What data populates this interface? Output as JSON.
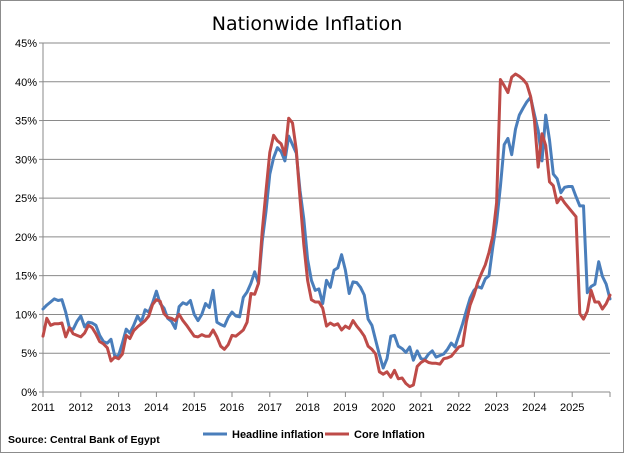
{
  "chart_data": {
    "type": "line",
    "title": "Nationwide Inflation",
    "source": "Source:  Central Bank of Egypt",
    "xlabel": "",
    "ylabel": "",
    "x_ticks": [
      "2011",
      "2012",
      "2013",
      "2014",
      "2015",
      "2016",
      "2017",
      "2018",
      "2019",
      "2020",
      "2021",
      "2022",
      "2023",
      "2024",
      "2025"
    ],
    "xlim": [
      2011.0,
      2026.0
    ],
    "y_ticks": [
      "0%",
      "5%",
      "10%",
      "15%",
      "20%",
      "25%",
      "30%",
      "35%",
      "40%",
      "45%"
    ],
    "ylim": [
      0,
      45
    ],
    "grid": "horizontal",
    "legend_position": "bottom-right",
    "series": [
      {
        "name": "Headline inflation",
        "color": "#4a7ebb",
        "points": [
          [
            2011.0,
            10.7
          ],
          [
            2011.1,
            11.2
          ],
          [
            2011.2,
            11.6
          ],
          [
            2011.3,
            12.0
          ],
          [
            2011.4,
            11.8
          ],
          [
            2011.5,
            11.9
          ],
          [
            2011.6,
            10.3
          ],
          [
            2011.7,
            8.2
          ],
          [
            2011.8,
            8.1
          ],
          [
            2011.9,
            9.1
          ],
          [
            2012.0,
            9.8
          ],
          [
            2012.1,
            8.4
          ],
          [
            2012.2,
            9.0
          ],
          [
            2012.3,
            8.9
          ],
          [
            2012.4,
            8.6
          ],
          [
            2012.5,
            7.3
          ],
          [
            2012.6,
            6.5
          ],
          [
            2012.7,
            6.3
          ],
          [
            2012.8,
            6.8
          ],
          [
            2012.9,
            4.6
          ],
          [
            2013.0,
            4.7
          ],
          [
            2013.1,
            6.3
          ],
          [
            2013.2,
            8.1
          ],
          [
            2013.3,
            7.6
          ],
          [
            2013.4,
            8.6
          ],
          [
            2013.5,
            9.8
          ],
          [
            2013.6,
            9.0
          ],
          [
            2013.7,
            10.6
          ],
          [
            2013.8,
            10.3
          ],
          [
            2013.9,
            11.5
          ],
          [
            2014.0,
            13.0
          ],
          [
            2014.1,
            11.4
          ],
          [
            2014.2,
            10.8
          ],
          [
            2014.3,
            9.5
          ],
          [
            2014.4,
            9.1
          ],
          [
            2014.5,
            8.2
          ],
          [
            2014.6,
            11.0
          ],
          [
            2014.7,
            11.5
          ],
          [
            2014.8,
            11.3
          ],
          [
            2014.9,
            11.8
          ],
          [
            2015.0,
            10.0
          ],
          [
            2015.1,
            9.2
          ],
          [
            2015.2,
            10.0
          ],
          [
            2015.3,
            11.4
          ],
          [
            2015.4,
            10.9
          ],
          [
            2015.5,
            13.1
          ],
          [
            2015.6,
            9.0
          ],
          [
            2015.7,
            8.7
          ],
          [
            2015.8,
            8.5
          ],
          [
            2015.9,
            9.6
          ],
          [
            2016.0,
            10.3
          ],
          [
            2016.1,
            9.8
          ],
          [
            2016.2,
            9.7
          ],
          [
            2016.3,
            12.2
          ],
          [
            2016.4,
            12.9
          ],
          [
            2016.5,
            14.0
          ],
          [
            2016.6,
            15.5
          ],
          [
            2016.7,
            14.0
          ],
          [
            2016.8,
            19.4
          ],
          [
            2016.9,
            23.3
          ],
          [
            2017.0,
            28.1
          ],
          [
            2017.1,
            30.2
          ],
          [
            2017.2,
            31.5
          ],
          [
            2017.3,
            31.0
          ],
          [
            2017.4,
            29.8
          ],
          [
            2017.5,
            33.0
          ],
          [
            2017.6,
            31.9
          ],
          [
            2017.7,
            30.8
          ],
          [
            2017.8,
            26.0
          ],
          [
            2017.9,
            22.3
          ],
          [
            2018.0,
            17.1
          ],
          [
            2018.1,
            14.4
          ],
          [
            2018.2,
            13.1
          ],
          [
            2018.3,
            13.3
          ],
          [
            2018.4,
            11.4
          ],
          [
            2018.5,
            14.4
          ],
          [
            2018.6,
            13.5
          ],
          [
            2018.7,
            15.7
          ],
          [
            2018.8,
            16.0
          ],
          [
            2018.9,
            17.7
          ],
          [
            2019.0,
            15.7
          ],
          [
            2019.1,
            12.7
          ],
          [
            2019.2,
            14.2
          ],
          [
            2019.3,
            14.1
          ],
          [
            2019.4,
            13.5
          ],
          [
            2019.5,
            12.5
          ],
          [
            2019.6,
            9.4
          ],
          [
            2019.7,
            8.6
          ],
          [
            2019.8,
            6.7
          ],
          [
            2019.9,
            4.8
          ],
          [
            2020.0,
            3.1
          ],
          [
            2020.1,
            4.3
          ],
          [
            2020.2,
            7.2
          ],
          [
            2020.3,
            7.3
          ],
          [
            2020.4,
            5.9
          ],
          [
            2020.5,
            5.6
          ],
          [
            2020.6,
            5.1
          ],
          [
            2020.7,
            5.8
          ],
          [
            2020.8,
            4.1
          ],
          [
            2020.9,
            5.3
          ],
          [
            2021.0,
            4.3
          ],
          [
            2021.1,
            4.2
          ],
          [
            2021.2,
            4.9
          ],
          [
            2021.3,
            5.3
          ],
          [
            2021.4,
            4.5
          ],
          [
            2021.5,
            4.7
          ],
          [
            2021.6,
            4.9
          ],
          [
            2021.7,
            5.5
          ],
          [
            2021.8,
            6.3
          ],
          [
            2021.9,
            5.8
          ],
          [
            2022.0,
            7.3
          ],
          [
            2022.1,
            8.8
          ],
          [
            2022.2,
            10.5
          ],
          [
            2022.3,
            12.1
          ],
          [
            2022.4,
            13.1
          ],
          [
            2022.5,
            13.6
          ],
          [
            2022.6,
            13.4
          ],
          [
            2022.7,
            14.6
          ],
          [
            2022.8,
            15.0
          ],
          [
            2022.9,
            18.7
          ],
          [
            2023.0,
            21.9
          ],
          [
            2023.1,
            26.5
          ],
          [
            2023.2,
            31.9
          ],
          [
            2023.3,
            32.7
          ],
          [
            2023.4,
            30.6
          ],
          [
            2023.5,
            33.9
          ],
          [
            2023.6,
            35.7
          ],
          [
            2023.7,
            36.6
          ],
          [
            2023.8,
            37.4
          ],
          [
            2023.9,
            38.0
          ],
          [
            2024.0,
            35.8
          ],
          [
            2024.1,
            33.7
          ],
          [
            2024.2,
            29.8
          ],
          [
            2024.3,
            35.7
          ],
          [
            2024.4,
            32.5
          ],
          [
            2024.5,
            28.1
          ],
          [
            2024.6,
            27.5
          ],
          [
            2024.7,
            25.7
          ],
          [
            2024.8,
            26.4
          ],
          [
            2024.9,
            26.5
          ],
          [
            2025.0,
            26.5
          ],
          [
            2025.1,
            25.2
          ],
          [
            2025.2,
            24.0
          ],
          [
            2025.3,
            24.0
          ],
          [
            2025.4,
            12.8
          ],
          [
            2025.5,
            13.6
          ],
          [
            2025.6,
            13.9
          ],
          [
            2025.7,
            16.8
          ],
          [
            2025.8,
            14.9
          ],
          [
            2025.9,
            13.9
          ],
          [
            2026.0,
            12.0
          ]
        ]
      },
      {
        "name": "Core Inflation",
        "color": "#be4b48",
        "points": [
          [
            2011.0,
            7.2
          ],
          [
            2011.1,
            9.5
          ],
          [
            2011.2,
            8.6
          ],
          [
            2011.3,
            8.8
          ],
          [
            2011.4,
            8.8
          ],
          [
            2011.5,
            8.9
          ],
          [
            2011.6,
            7.1
          ],
          [
            2011.7,
            8.3
          ],
          [
            2011.8,
            7.5
          ],
          [
            2011.9,
            7.3
          ],
          [
            2012.0,
            7.1
          ],
          [
            2012.1,
            7.6
          ],
          [
            2012.2,
            8.6
          ],
          [
            2012.3,
            8.3
          ],
          [
            2012.4,
            7.5
          ],
          [
            2012.5,
            6.5
          ],
          [
            2012.6,
            6.2
          ],
          [
            2012.7,
            5.7
          ],
          [
            2012.8,
            4.0
          ],
          [
            2012.9,
            4.5
          ],
          [
            2013.0,
            4.3
          ],
          [
            2013.1,
            4.9
          ],
          [
            2013.2,
            7.3
          ],
          [
            2013.3,
            6.9
          ],
          [
            2013.4,
            7.9
          ],
          [
            2013.5,
            8.4
          ],
          [
            2013.6,
            8.8
          ],
          [
            2013.7,
            9.2
          ],
          [
            2013.8,
            9.8
          ],
          [
            2013.9,
            11.3
          ],
          [
            2014.0,
            11.9
          ],
          [
            2014.1,
            11.7
          ],
          [
            2014.2,
            10.1
          ],
          [
            2014.3,
            9.6
          ],
          [
            2014.4,
            9.5
          ],
          [
            2014.5,
            9.2
          ],
          [
            2014.6,
            10.0
          ],
          [
            2014.7,
            9.2
          ],
          [
            2014.8,
            8.6
          ],
          [
            2014.9,
            7.9
          ],
          [
            2015.0,
            7.2
          ],
          [
            2015.1,
            7.1
          ],
          [
            2015.2,
            7.4
          ],
          [
            2015.3,
            7.2
          ],
          [
            2015.4,
            7.2
          ],
          [
            2015.5,
            8.0
          ],
          [
            2015.6,
            7.1
          ],
          [
            2015.7,
            5.9
          ],
          [
            2015.8,
            5.5
          ],
          [
            2015.9,
            6.1
          ],
          [
            2016.0,
            7.3
          ],
          [
            2016.1,
            7.2
          ],
          [
            2016.2,
            7.6
          ],
          [
            2016.3,
            8.0
          ],
          [
            2016.4,
            9.0
          ],
          [
            2016.5,
            12.7
          ],
          [
            2016.6,
            12.6
          ],
          [
            2016.7,
            14.0
          ],
          [
            2016.8,
            20.7
          ],
          [
            2016.9,
            25.9
          ],
          [
            2017.0,
            30.9
          ],
          [
            2017.1,
            33.1
          ],
          [
            2017.2,
            32.4
          ],
          [
            2017.3,
            32.0
          ],
          [
            2017.4,
            30.6
          ],
          [
            2017.5,
            35.3
          ],
          [
            2017.6,
            34.7
          ],
          [
            2017.7,
            31.2
          ],
          [
            2017.8,
            25.0
          ],
          [
            2017.9,
            19.0
          ],
          [
            2018.0,
            14.4
          ],
          [
            2018.1,
            11.9
          ],
          [
            2018.2,
            11.6
          ],
          [
            2018.3,
            11.6
          ],
          [
            2018.4,
            10.8
          ],
          [
            2018.5,
            8.5
          ],
          [
            2018.6,
            8.9
          ],
          [
            2018.7,
            8.6
          ],
          [
            2018.8,
            8.8
          ],
          [
            2018.9,
            8.0
          ],
          [
            2019.0,
            8.5
          ],
          [
            2019.1,
            8.2
          ],
          [
            2019.2,
            9.2
          ],
          [
            2019.3,
            8.5
          ],
          [
            2019.4,
            7.9
          ],
          [
            2019.5,
            7.2
          ],
          [
            2019.6,
            5.9
          ],
          [
            2019.7,
            5.5
          ],
          [
            2019.8,
            4.9
          ],
          [
            2019.9,
            2.6
          ],
          [
            2020.0,
            2.3
          ],
          [
            2020.1,
            2.6
          ],
          [
            2020.2,
            1.9
          ],
          [
            2020.3,
            2.8
          ],
          [
            2020.4,
            1.7
          ],
          [
            2020.5,
            1.8
          ],
          [
            2020.6,
            1.1
          ],
          [
            2020.7,
            0.7
          ],
          [
            2020.8,
            0.9
          ],
          [
            2020.9,
            3.3
          ],
          [
            2021.0,
            3.8
          ],
          [
            2021.1,
            4.1
          ],
          [
            2021.2,
            3.8
          ],
          [
            2021.3,
            3.7
          ],
          [
            2021.4,
            3.7
          ],
          [
            2021.5,
            3.6
          ],
          [
            2021.6,
            4.3
          ],
          [
            2021.7,
            4.4
          ],
          [
            2021.8,
            4.6
          ],
          [
            2021.9,
            5.2
          ],
          [
            2022.0,
            5.8
          ],
          [
            2022.1,
            6.0
          ],
          [
            2022.2,
            9.1
          ],
          [
            2022.3,
            11.2
          ],
          [
            2022.4,
            12.5
          ],
          [
            2022.5,
            14.1
          ],
          [
            2022.6,
            15.3
          ],
          [
            2022.7,
            16.4
          ],
          [
            2022.8,
            18.0
          ],
          [
            2022.9,
            20.1
          ],
          [
            2023.0,
            24.4
          ],
          [
            2023.1,
            40.3
          ],
          [
            2023.2,
            39.5
          ],
          [
            2023.3,
            38.6
          ],
          [
            2023.4,
            40.6
          ],
          [
            2023.5,
            41.0
          ],
          [
            2023.6,
            40.7
          ],
          [
            2023.7,
            40.3
          ],
          [
            2023.8,
            39.7
          ],
          [
            2023.9,
            38.1
          ],
          [
            2024.0,
            35.1
          ],
          [
            2024.1,
            29.0
          ],
          [
            2024.2,
            33.3
          ],
          [
            2024.3,
            31.8
          ],
          [
            2024.4,
            27.1
          ],
          [
            2024.5,
            26.6
          ],
          [
            2024.6,
            24.4
          ],
          [
            2024.7,
            25.1
          ],
          [
            2024.8,
            24.4
          ],
          [
            2024.9,
            23.8
          ],
          [
            2025.0,
            23.2
          ],
          [
            2025.1,
            22.6
          ],
          [
            2025.2,
            10.1
          ],
          [
            2025.3,
            9.4
          ],
          [
            2025.4,
            10.4
          ],
          [
            2025.5,
            13.1
          ],
          [
            2025.6,
            11.6
          ],
          [
            2025.7,
            11.6
          ],
          [
            2025.8,
            10.7
          ],
          [
            2025.9,
            11.4
          ],
          [
            2026.0,
            12.5
          ]
        ]
      }
    ]
  }
}
